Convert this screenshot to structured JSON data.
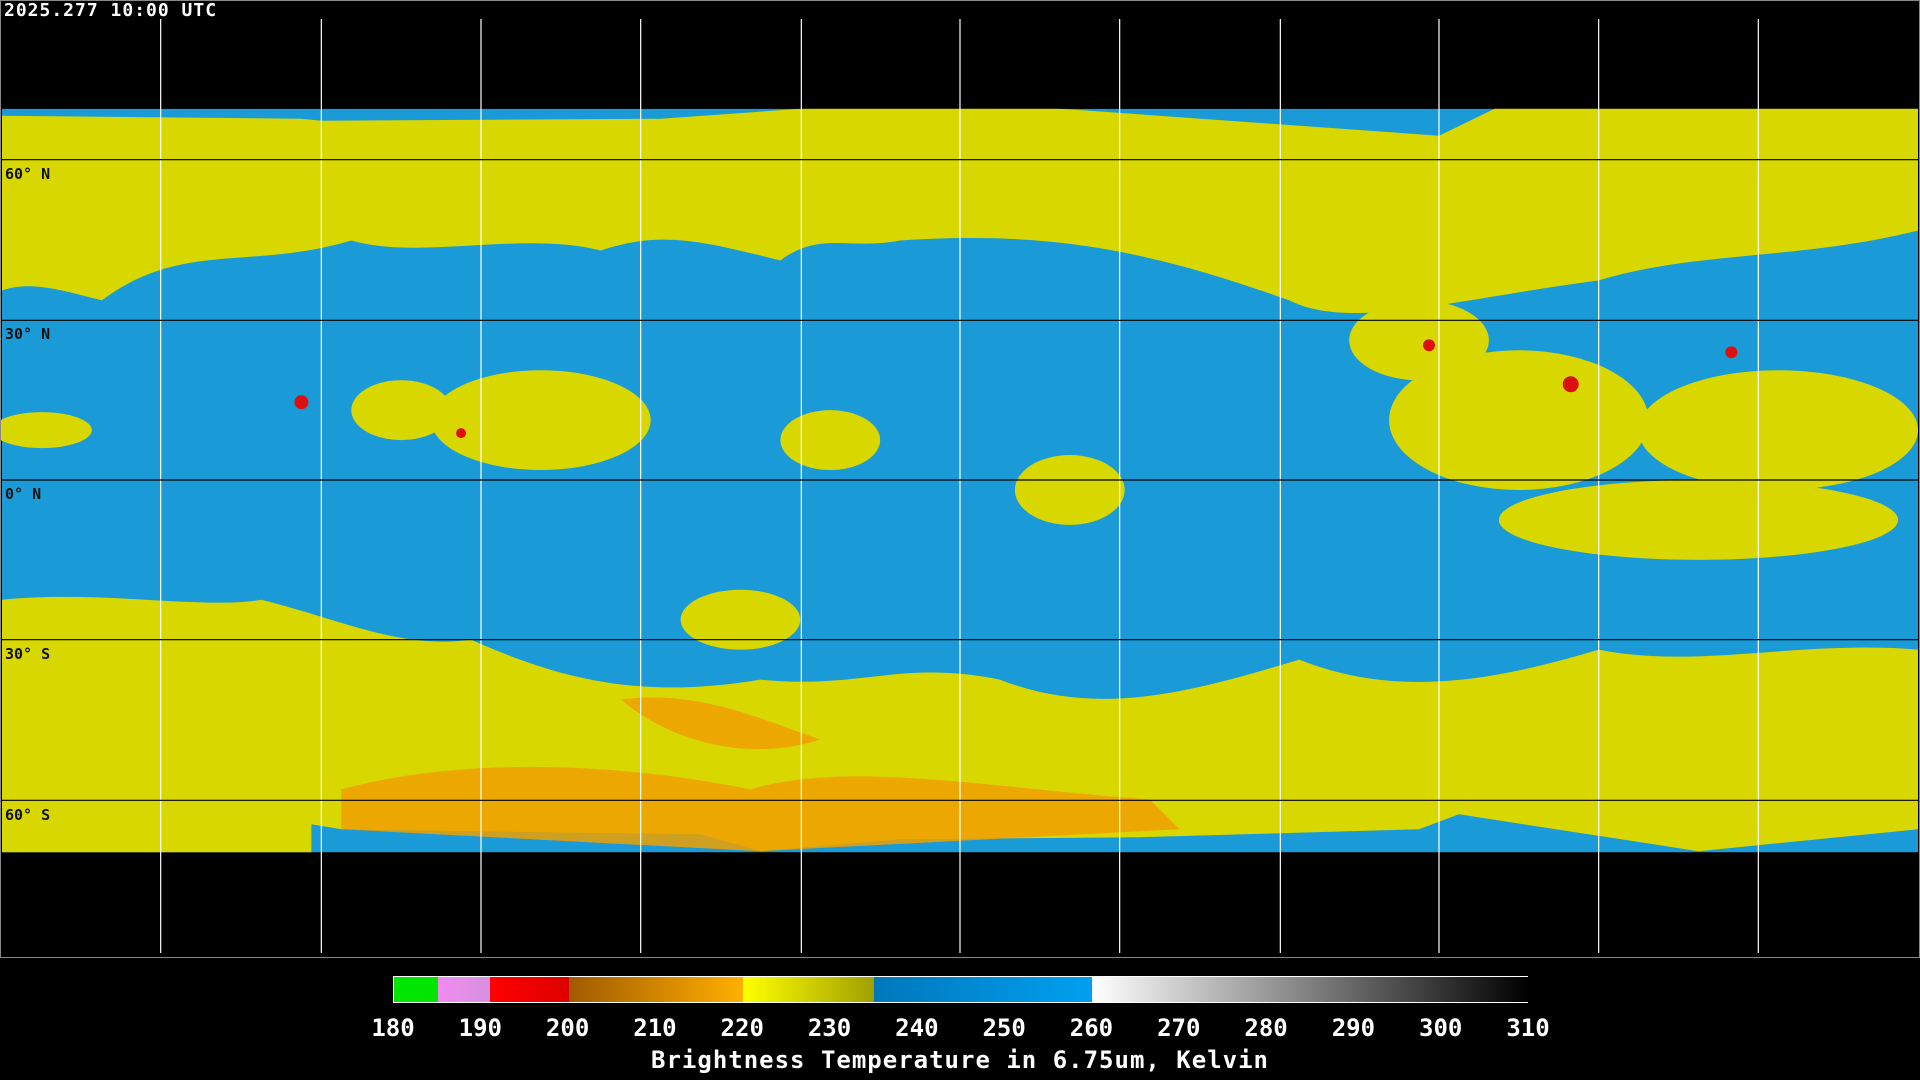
{
  "timestamp": "2025.277 10:00 UTC",
  "latitude_labels": [
    "60° N",
    "30° N",
    "0° N",
    "30° S",
    "60° S"
  ],
  "colorbar": {
    "title": "Brightness Temperature in 6.75um, Kelvin",
    "min": 180,
    "max": 310,
    "ticks": [
      "180",
      "190",
      "200",
      "210",
      "220",
      "230",
      "240",
      "250",
      "260",
      "270",
      "280",
      "290",
      "300",
      "310"
    ],
    "segments": [
      {
        "from": 180,
        "to": 185,
        "colors": [
          "#00e600",
          "#00e600"
        ]
      },
      {
        "from": 185,
        "to": 191,
        "colors": [
          "#f08cf0",
          "#d890e0"
        ]
      },
      {
        "from": 191,
        "to": 200,
        "colors": [
          "#ff0000",
          "#dd0000"
        ]
      },
      {
        "from": 200,
        "to": 220,
        "colors": [
          "#a05a00",
          "#ffb000"
        ]
      },
      {
        "from": 220,
        "to": 235,
        "colors": [
          "#ffff00",
          "#a0a000"
        ]
      },
      {
        "from": 235,
        "to": 260,
        "colors": [
          "#0077bb",
          "#00a0f0"
        ]
      },
      {
        "from": 260,
        "to": 310,
        "colors": [
          "#ffffff",
          "#000000"
        ]
      }
    ]
  },
  "colors": {
    "moist": "#1a9ad6",
    "dry": "#e0e000",
    "cold": "#f0a000",
    "very_cold": "#dd1010",
    "background": "#000000"
  }
}
